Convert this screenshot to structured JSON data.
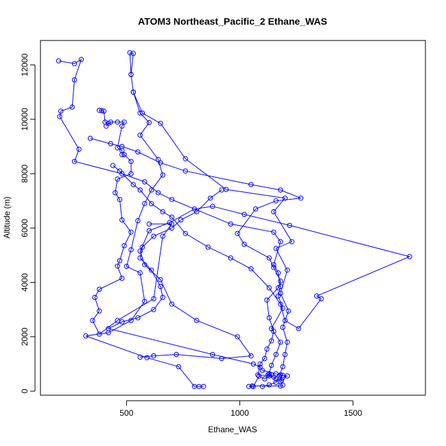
{
  "chart_data": {
    "type": "line",
    "title": "ATOM3 Northeast_Pacific_2 Ethane_WAS",
    "xlabel": "Ethane_WAS",
    "ylabel": "Altitude (m)",
    "xlim": [
      120,
      1820
    ],
    "ylim": [
      -150,
      12900
    ],
    "x_ticks": [
      500,
      1000,
      1500
    ],
    "y_ticks": [
      0,
      2000,
      4000,
      6000,
      8000,
      10000,
      12000
    ],
    "markers": "open-circle",
    "grid": false,
    "legend": "none",
    "color": "#0000ff",
    "series": [
      {
        "points": [
          [
            1100,
            170
          ],
          [
            1130,
            230
          ],
          [
            1160,
            320
          ],
          [
            1175,
            560
          ],
          [
            1190,
            900
          ],
          [
            1200,
            1350
          ],
          [
            1210,
            1800
          ],
          [
            1190,
            2350
          ],
          [
            1215,
            2950
          ],
          [
            1180,
            3600
          ],
          [
            1210,
            4450
          ],
          [
            1160,
            5250
          ],
          [
            1230,
            5500
          ],
          [
            1150,
            6600
          ],
          [
            1200,
            7100
          ],
          [
            940,
            7420
          ],
          [
            760,
            8550
          ],
          [
            650,
            9850
          ],
          [
            570,
            10230
          ],
          [
            530,
            11000
          ],
          [
            520,
            11650
          ],
          [
            530,
            12420
          ],
          [
            515,
            12450
          ],
          [
            520,
            11650
          ],
          [
            530,
            11000
          ],
          [
            560,
            10230
          ],
          [
            600,
            9880
          ],
          [
            560,
            9420
          ],
          [
            640,
            8520
          ],
          [
            660,
            7950
          ],
          [
            610,
            7400
          ],
          [
            580,
            6900
          ],
          [
            550,
            6270
          ],
          [
            520,
            5200
          ],
          [
            500,
            4590
          ],
          [
            560,
            4350
          ],
          [
            580,
            3300
          ],
          [
            520,
            2600
          ],
          [
            420,
            2150
          ],
          [
            320,
            2030
          ],
          [
            590,
            1230
          ],
          [
            730,
            900
          ],
          [
            800,
            170
          ],
          [
            820,
            170
          ],
          [
            840,
            170
          ]
        ]
      },
      {
        "points": [
          [
            200,
            12150
          ],
          [
            270,
            12050
          ],
          [
            300,
            12200
          ],
          [
            270,
            11450
          ],
          [
            260,
            10450
          ],
          [
            210,
            10300
          ],
          [
            205,
            10100
          ],
          [
            290,
            8900
          ],
          [
            270,
            8450
          ],
          [
            480,
            8000
          ],
          [
            580,
            7700
          ],
          [
            640,
            7300
          ],
          [
            700,
            7050
          ],
          [
            960,
            6150
          ],
          [
            1150,
            5850
          ],
          [
            1180,
            5500
          ],
          [
            1150,
            4650
          ],
          [
            1170,
            4350
          ],
          [
            1180,
            3850
          ],
          [
            1170,
            3500
          ],
          [
            1190,
            3050
          ],
          [
            1140,
            2300
          ],
          [
            1180,
            1800
          ],
          [
            1160,
            1350
          ],
          [
            1140,
            950
          ],
          [
            1130,
            640
          ],
          [
            1125,
            600
          ],
          [
            1140,
            600
          ],
          [
            1110,
            450
          ],
          [
            1085,
            550
          ],
          [
            1060,
            170
          ],
          [
            1040,
            170
          ],
          [
            1055,
            190
          ],
          [
            1180,
            190
          ],
          [
            1190,
            220
          ]
        ]
      },
      {
        "points": [
          [
            380,
            10330
          ],
          [
            390,
            10320
          ],
          [
            400,
            10300
          ],
          [
            405,
            9900
          ],
          [
            420,
            9850
          ],
          [
            410,
            9750
          ],
          [
            430,
            9900
          ],
          [
            460,
            9900
          ],
          [
            490,
            9900
          ],
          [
            480,
            9750
          ],
          [
            460,
            8950
          ],
          [
            480,
            8850
          ],
          [
            480,
            8700
          ],
          [
            490,
            8700
          ],
          [
            520,
            8450
          ],
          [
            520,
            8000
          ],
          [
            460,
            7800
          ],
          [
            450,
            7300
          ],
          [
            470,
            7050
          ],
          [
            480,
            6300
          ],
          [
            520,
            5850
          ],
          [
            490,
            5350
          ],
          [
            470,
            4800
          ],
          [
            460,
            4600
          ],
          [
            480,
            4150
          ],
          [
            380,
            3750
          ],
          [
            360,
            3450
          ],
          [
            380,
            2950
          ],
          [
            350,
            2600
          ],
          [
            380,
            2100
          ],
          [
            460,
            2600
          ],
          [
            620,
            3400
          ],
          [
            660,
            5700
          ],
          [
            700,
            6150
          ],
          [
            600,
            6150
          ]
        ]
      },
      {
        "points": [
          [
            340,
            9300
          ],
          [
            430,
            9100
          ],
          [
            480,
            9000
          ],
          [
            550,
            8800
          ],
          [
            650,
            8400
          ],
          [
            760,
            8100
          ],
          [
            1050,
            7600
          ],
          [
            1180,
            7400
          ],
          [
            1270,
            7100
          ],
          [
            1160,
            7000
          ],
          [
            1070,
            6700
          ],
          [
            990,
            5800
          ],
          [
            1020,
            5400
          ],
          [
            1130,
            4900
          ],
          [
            1150,
            4550
          ],
          [
            1180,
            4050
          ],
          [
            1170,
            3800
          ],
          [
            1120,
            3350
          ],
          [
            1130,
            2700
          ],
          [
            1150,
            2200
          ],
          [
            1140,
            1850
          ],
          [
            1120,
            1550
          ],
          [
            1110,
            1200
          ],
          [
            1090,
            1000
          ],
          [
            1080,
            600
          ],
          [
            1130,
            560
          ],
          [
            1150,
            520
          ],
          [
            1160,
            450
          ],
          [
            1185,
            400
          ],
          [
            1180,
            350
          ]
        ]
      },
      {
        "points": [
          [
            440,
            8300
          ],
          [
            470,
            8100
          ],
          [
            530,
            7600
          ],
          [
            560,
            7400
          ],
          [
            610,
            6900
          ],
          [
            660,
            6600
          ],
          [
            700,
            6400
          ],
          [
            760,
            5800
          ],
          [
            860,
            5300
          ],
          [
            960,
            4900
          ],
          [
            1050,
            4500
          ],
          [
            1130,
            3800
          ],
          [
            1180,
            3200
          ],
          [
            1200,
            2600
          ],
          [
            1260,
            2300
          ],
          [
            1360,
            3400
          ],
          [
            1340,
            3500
          ],
          [
            1750,
            4950
          ],
          [
            1220,
            6100
          ],
          [
            1020,
            6500
          ],
          [
            880,
            6800
          ],
          [
            800,
            6700
          ],
          [
            690,
            6200
          ],
          [
            600,
            5900
          ],
          [
            560,
            5150
          ],
          [
            580,
            4650
          ],
          [
            650,
            4100
          ],
          [
            700,
            3200
          ],
          [
            810,
            2600
          ],
          [
            990,
            2000
          ],
          [
            1050,
            1300
          ],
          [
            920,
            1200
          ],
          [
            720,
            1350
          ],
          [
            620,
            1300
          ],
          [
            560,
            1250
          ]
        ]
      },
      {
        "points": [
          [
            920,
            7400
          ],
          [
            870,
            7100
          ],
          [
            810,
            6600
          ],
          [
            740,
            6300
          ],
          [
            700,
            6000
          ],
          [
            620,
            5700
          ],
          [
            570,
            5300
          ],
          [
            560,
            4900
          ],
          [
            610,
            4450
          ],
          [
            650,
            3850
          ],
          [
            660,
            3450
          ],
          [
            620,
            3000
          ],
          [
            550,
            2700
          ],
          [
            480,
            2550
          ],
          [
            420,
            2300
          ],
          [
            880,
            1350
          ],
          [
            1060,
            1000
          ],
          [
            1090,
            880
          ],
          [
            1100,
            760
          ],
          [
            1160,
            640
          ],
          [
            1180,
            600
          ],
          [
            1190,
            580
          ],
          [
            1210,
            560
          ],
          [
            1190,
            500
          ]
        ]
      }
    ]
  }
}
